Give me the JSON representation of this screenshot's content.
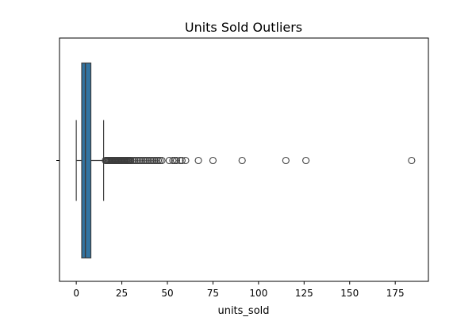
{
  "chart_data": {
    "type": "box",
    "orientation": "horizontal",
    "title": "Units Sold Outliers",
    "xlabel": "units_sold",
    "ylabel": "",
    "xlim": [
      -9.2,
      193.2
    ],
    "xticks": [
      0,
      25,
      50,
      75,
      100,
      125,
      150,
      175
    ],
    "xtick_labels": [
      "0",
      "25",
      "50",
      "75",
      "100",
      "125",
      "150",
      "175"
    ],
    "box": {
      "whisker_low": 0,
      "q1": 3,
      "median": 5,
      "q3": 8,
      "whisker_high": 15
    },
    "outliers": [
      16,
      16.5,
      17,
      17.5,
      18,
      18.5,
      19,
      19.5,
      20,
      20.5,
      21,
      21.5,
      22,
      22.5,
      23,
      23.5,
      24,
      24.5,
      25,
      25.5,
      26,
      26.5,
      27,
      27.5,
      28,
      28.5,
      29,
      29.5,
      30,
      31,
      32,
      33,
      34,
      35,
      36,
      37,
      38,
      39,
      40,
      41,
      42,
      43,
      44,
      45,
      46,
      47,
      51,
      53,
      54,
      55,
      57,
      58,
      60,
      67,
      75,
      91,
      115,
      126,
      184
    ],
    "colors": {
      "box_fill": "#3274a1",
      "lines": "#3d3d3d",
      "outlier_edge": "#3d3d3d",
      "axes": "#000000"
    },
    "grid": false,
    "legend": "none"
  }
}
